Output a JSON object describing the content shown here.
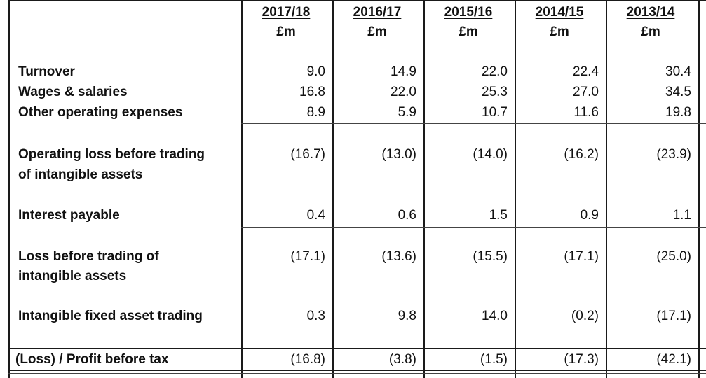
{
  "columns": [
    {
      "year": "2017/18",
      "unit": "£m"
    },
    {
      "year": "2016/17",
      "unit": "£m"
    },
    {
      "year": "2015/16",
      "unit": "£m"
    },
    {
      "year": "2014/15",
      "unit": "£m"
    },
    {
      "year": "2013/14",
      "unit": "£m"
    }
  ],
  "rows": [
    {
      "label": "Turnover",
      "values": [
        "9.0",
        "14.9",
        "22.0",
        "22.4",
        "30.4"
      ]
    },
    {
      "label": "Wages & salaries",
      "values": [
        "16.8",
        "22.0",
        "25.3",
        "27.0",
        "34.5"
      ]
    },
    {
      "label": "Other operating expenses",
      "values": [
        "8.9",
        "5.9",
        "10.7",
        "11.6",
        "19.8"
      ]
    },
    {
      "label": "Operating loss before trading",
      "label2": "of intangible assets",
      "values": [
        "(16.7)",
        "(13.0)",
        "(14.0)",
        "(16.2)",
        "(23.9)"
      ]
    },
    {
      "label": "Interest payable",
      "values": [
        "0.4",
        "0.6",
        "1.5",
        "0.9",
        "1.1"
      ]
    },
    {
      "label": "Loss before trading of",
      "label2": "intangible assets",
      "values": [
        "(17.1)",
        "(13.6)",
        "(15.5)",
        "(17.1)",
        "(25.0)"
      ]
    },
    {
      "label": "Intangible fixed asset trading",
      "values": [
        "0.3",
        "9.8",
        "14.0",
        "(0.2)",
        "(17.1)"
      ]
    },
    {
      "label": "(Loss) / Profit before tax",
      "values": [
        "(16.8)",
        "(3.8)",
        "(1.5)",
        "(17.3)",
        "(42.1)"
      ]
    }
  ]
}
